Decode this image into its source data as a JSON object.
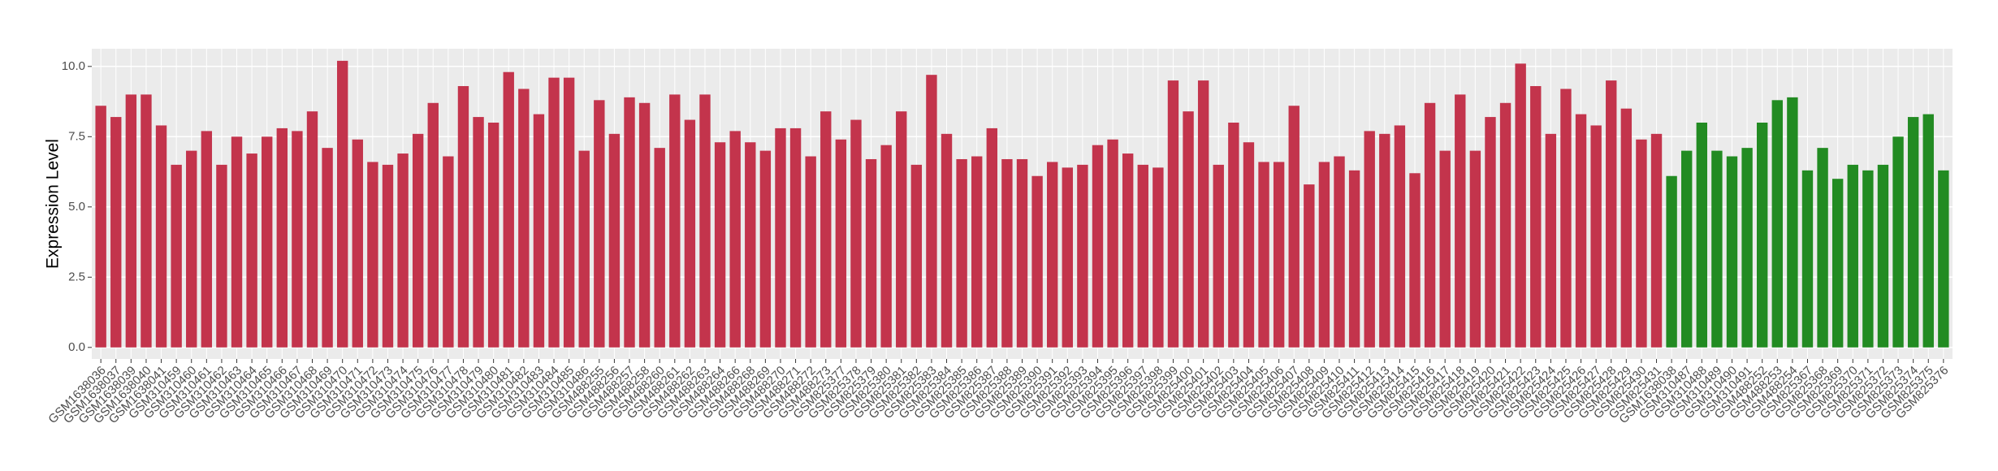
{
  "chart_data": {
    "type": "bar",
    "y_label": "Expression Level",
    "categories": [
      "GSM1638036",
      "GSM1638037",
      "GSM1638039",
      "GSM1638040",
      "GSM1638041",
      "GSM310459",
      "GSM310460",
      "GSM310461",
      "GSM310462",
      "GSM310463",
      "GSM310464",
      "GSM310465",
      "GSM310466",
      "GSM310467",
      "GSM310468",
      "GSM310469",
      "GSM310470",
      "GSM310471",
      "GSM310472",
      "GSM310473",
      "GSM310474",
      "GSM310475",
      "GSM310476",
      "GSM310477",
      "GSM310478",
      "GSM310479",
      "GSM310480",
      "GSM310481",
      "GSM310482",
      "GSM310483",
      "GSM310484",
      "GSM310485",
      "GSM310486",
      "GSM488255",
      "GSM488256",
      "GSM488257",
      "GSM488258",
      "GSM488260",
      "GSM488261",
      "GSM488262",
      "GSM488263",
      "GSM488264",
      "GSM488266",
      "GSM488268",
      "GSM488269",
      "GSM488270",
      "GSM488271",
      "GSM488272",
      "GSM488273",
      "GSM825377",
      "GSM825378",
      "GSM825379",
      "GSM825380",
      "GSM825381",
      "GSM825382",
      "GSM825383",
      "GSM825384",
      "GSM825385",
      "GSM825386",
      "GSM825387",
      "GSM825388",
      "GSM825389",
      "GSM825390",
      "GSM825391",
      "GSM825392",
      "GSM825393",
      "GSM825394",
      "GSM825395",
      "GSM825396",
      "GSM825397",
      "GSM825398",
      "GSM825399",
      "GSM825400",
      "GSM825401",
      "GSM825402",
      "GSM825403",
      "GSM825404",
      "GSM825405",
      "GSM825406",
      "GSM825407",
      "GSM825408",
      "GSM825409",
      "GSM825410",
      "GSM825411",
      "GSM825412",
      "GSM825413",
      "GSM825414",
      "GSM825415",
      "GSM825416",
      "GSM825417",
      "GSM825418",
      "GSM825419",
      "GSM825420",
      "GSM825421",
      "GSM825422",
      "GSM825423",
      "GSM825424",
      "GSM825425",
      "GSM825426",
      "GSM825427",
      "GSM825428",
      "GSM825429",
      "GSM825430",
      "GSM825431",
      "GSM1638038",
      "GSM310487",
      "GSM310488",
      "GSM310489",
      "GSM310490",
      "GSM310491",
      "GSM488252",
      "GSM488253",
      "GSM488254",
      "GSM825367",
      "GSM825368",
      "GSM825369",
      "GSM825370",
      "GSM825371",
      "GSM825372",
      "GSM825373",
      "GSM825374",
      "GSM825375",
      "GSM825376"
    ],
    "values": [
      8.6,
      8.2,
      9.0,
      9.0,
      7.9,
      6.5,
      7.0,
      7.7,
      6.5,
      7.5,
      6.9,
      7.5,
      7.8,
      7.7,
      8.4,
      7.1,
      10.2,
      7.4,
      6.6,
      6.5,
      6.9,
      7.6,
      8.7,
      6.8,
      9.3,
      8.2,
      8.0,
      9.8,
      9.2,
      8.3,
      9.6,
      9.6,
      7.0,
      8.8,
      7.6,
      8.9,
      8.7,
      7.1,
      9.0,
      8.1,
      9.0,
      7.3,
      7.7,
      7.3,
      7.0,
      7.8,
      7.8,
      6.8,
      8.4,
      7.4,
      8.1,
      6.7,
      7.2,
      8.4,
      6.5,
      9.7,
      7.6,
      6.7,
      6.8,
      7.8,
      6.7,
      6.7,
      6.1,
      6.6,
      6.4,
      6.5,
      7.2,
      7.4,
      6.9,
      6.5,
      6.4,
      9.5,
      8.4,
      9.5,
      6.5,
      8.0,
      7.3,
      6.6,
      6.6,
      8.6,
      5.8,
      6.6,
      6.8,
      6.3,
      7.7,
      7.6,
      7.9,
      6.2,
      8.7,
      7.0,
      9.0,
      7.0,
      8.2,
      8.7,
      10.1,
      9.3,
      7.6,
      9.2,
      8.3,
      7.9,
      9.5,
      8.5,
      7.4,
      7.6,
      6.1,
      7.0,
      8.0,
      7.0,
      6.8,
      7.1,
      8.0,
      8.8,
      8.9,
      6.3,
      7.1,
      6.0,
      6.5,
      6.3,
      6.5,
      7.5,
      8.2,
      8.3,
      6.3
    ],
    "colors": [
      "#c3344c",
      "#c3344c",
      "#c3344c",
      "#c3344c",
      "#c3344c",
      "#c3344c",
      "#c3344c",
      "#c3344c",
      "#c3344c",
      "#c3344c",
      "#c3344c",
      "#c3344c",
      "#c3344c",
      "#c3344c",
      "#c3344c",
      "#c3344c",
      "#c3344c",
      "#c3344c",
      "#c3344c",
      "#c3344c",
      "#c3344c",
      "#c3344c",
      "#c3344c",
      "#c3344c",
      "#c3344c",
      "#c3344c",
      "#c3344c",
      "#c3344c",
      "#c3344c",
      "#c3344c",
      "#c3344c",
      "#c3344c",
      "#c3344c",
      "#c3344c",
      "#c3344c",
      "#c3344c",
      "#c3344c",
      "#c3344c",
      "#c3344c",
      "#c3344c",
      "#c3344c",
      "#c3344c",
      "#c3344c",
      "#c3344c",
      "#c3344c",
      "#c3344c",
      "#c3344c",
      "#c3344c",
      "#c3344c",
      "#c3344c",
      "#c3344c",
      "#c3344c",
      "#c3344c",
      "#c3344c",
      "#c3344c",
      "#c3344c",
      "#c3344c",
      "#c3344c",
      "#c3344c",
      "#c3344c",
      "#c3344c",
      "#c3344c",
      "#c3344c",
      "#c3344c",
      "#c3344c",
      "#c3344c",
      "#c3344c",
      "#c3344c",
      "#c3344c",
      "#c3344c",
      "#c3344c",
      "#c3344c",
      "#c3344c",
      "#c3344c",
      "#c3344c",
      "#c3344c",
      "#c3344c",
      "#c3344c",
      "#c3344c",
      "#c3344c",
      "#c3344c",
      "#c3344c",
      "#c3344c",
      "#c3344c",
      "#c3344c",
      "#c3344c",
      "#c3344c",
      "#c3344c",
      "#c3344c",
      "#c3344c",
      "#c3344c",
      "#c3344c",
      "#c3344c",
      "#c3344c",
      "#c3344c",
      "#c3344c",
      "#c3344c",
      "#c3344c",
      "#c3344c",
      "#c3344c",
      "#c3344c",
      "#c3344c",
      "#c3344c",
      "#c3344c",
      "#228b22",
      "#228b22",
      "#228b22",
      "#228b22",
      "#228b22",
      "#228b22",
      "#228b22",
      "#228b22",
      "#228b22",
      "#228b22",
      "#228b22",
      "#228b22",
      "#228b22",
      "#228b22",
      "#228b22",
      "#228b22",
      "#228b22",
      "#228b22",
      "#228b22"
    ],
    "ylim": [
      -0.41,
      10.63
    ],
    "yticks": [
      {
        "value": 0,
        "label": "0.0"
      },
      {
        "value": 2.5,
        "label": "2.5"
      },
      {
        "value": 5,
        "label": "5.0"
      },
      {
        "value": 7.5,
        "label": "7.5"
      },
      {
        "value": 10,
        "label": "10.0"
      }
    ],
    "grid": true
  }
}
